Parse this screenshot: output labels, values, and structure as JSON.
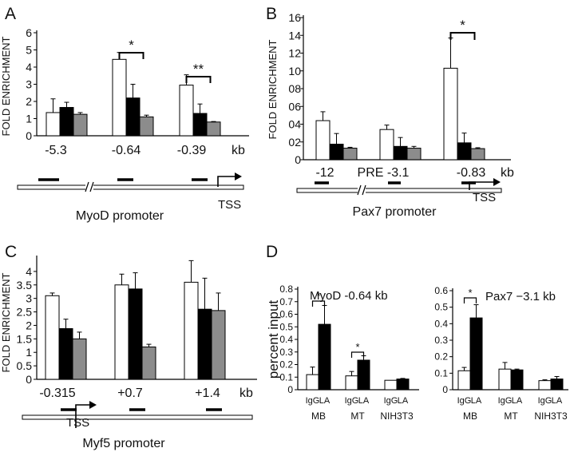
{
  "panel_letters": {
    "A": "A",
    "B": "B",
    "C": "C",
    "D": "D"
  },
  "colors": {
    "white": "#ffffff",
    "black": "#000000",
    "grey": "#8c8c8c",
    "line": "#000000"
  },
  "chart_data": [
    {
      "id": "A",
      "type": "bar",
      "ylabel": "FOLD ENRICHMENT",
      "ylim": [
        0,
        6
      ],
      "yticks": [
        "0",
        "1",
        "2",
        "3",
        "4",
        "5",
        "6"
      ],
      "categories": [
        "-5.3",
        "-0.64",
        "-0.39"
      ],
      "unit": "kb",
      "series": [
        {
          "name": "white",
          "values": [
            1.35,
            4.45,
            2.95
          ],
          "errors": [
            0.8,
            0.4,
            0.6
          ]
        },
        {
          "name": "black",
          "values": [
            1.65,
            2.2,
            1.3
          ],
          "errors": [
            0.3,
            0.8,
            0.55
          ]
        },
        {
          "name": "grey",
          "values": [
            1.25,
            1.1,
            0.8
          ],
          "errors": [
            0.1,
            0.1,
            0.03
          ]
        }
      ],
      "significance": [
        {
          "group": 1,
          "label": "*"
        },
        {
          "group": 2,
          "label": "**"
        }
      ],
      "promoter_label": "MyoD promoter",
      "tss": "TSS"
    },
    {
      "id": "B",
      "type": "bar",
      "ylabel": "FOLD ENRICHMENT",
      "ylim": [
        0,
        16
      ],
      "yticks": [
        "0",
        "02",
        "04",
        "06",
        "08",
        "10",
        "12",
        "14",
        "16"
      ],
      "categories": [
        "-12",
        "PRE -3.1",
        "-0.83"
      ],
      "unit": "kb",
      "series": [
        {
          "name": "white",
          "values": [
            4.4,
            3.4,
            10.3
          ],
          "errors": [
            1.0,
            0.5,
            3.4
          ]
        },
        {
          "name": "black",
          "values": [
            1.75,
            1.5,
            1.9
          ],
          "errors": [
            1.2,
            1.0,
            1.1
          ]
        },
        {
          "name": "grey",
          "values": [
            1.3,
            1.3,
            1.25
          ],
          "errors": [
            0.1,
            0.2,
            0.1
          ]
        }
      ],
      "significance": [
        {
          "group": 2,
          "label": "*"
        }
      ],
      "promoter_label": "Pax7 promoter",
      "tss": "TSS"
    },
    {
      "id": "C",
      "type": "bar",
      "ylabel": "FOLD ENRICHMENT",
      "ylim": [
        0,
        4.5
      ],
      "yticks": [
        "0",
        "0.5",
        "1",
        "1.5",
        "2",
        "2.5",
        "3",
        "3.5",
        "4"
      ],
      "categories": [
        "-0.315",
        "+0.7",
        "+1.4"
      ],
      "unit": "kb",
      "series": [
        {
          "name": "white",
          "values": [
            3.1,
            3.5,
            3.6
          ],
          "errors": [
            0.1,
            0.4,
            0.8
          ]
        },
        {
          "name": "black",
          "values": [
            1.88,
            3.35,
            2.6
          ],
          "errors": [
            0.35,
            0.6,
            1.15
          ]
        },
        {
          "name": "grey",
          "values": [
            1.5,
            1.2,
            2.55
          ],
          "errors": [
            0.25,
            0.1,
            0.65
          ]
        }
      ],
      "significance": [],
      "promoter_label": "Myf5 promoter",
      "tss": "TSS"
    },
    {
      "id": "D1",
      "type": "bar",
      "ylabel": "percent input",
      "title": "MyoD -0.64 kb",
      "ylim": [
        0,
        0.8
      ],
      "yticks": [
        "0",
        "0.1",
        "0.2",
        "0.3",
        "0.4",
        "0.5",
        "0.6",
        "0.7",
        "0.8"
      ],
      "categories": [
        "MB",
        "MT",
        "NIH3T3"
      ],
      "bar_labels": [
        "IgG",
        "LA"
      ],
      "series": [
        {
          "name": "IgG",
          "values": [
            0.12,
            0.11,
            0.075
          ],
          "errors": [
            0.06,
            0.035,
            0.0
          ]
        },
        {
          "name": "LA",
          "values": [
            0.52,
            0.235,
            0.085
          ],
          "errors": [
            0.15,
            0.035,
            0.005
          ]
        }
      ],
      "significance": [
        {
          "group": 0,
          "label": "*"
        },
        {
          "group": 1,
          "label": "*"
        }
      ]
    },
    {
      "id": "D2",
      "type": "bar",
      "title": "Pax7 −3.1 kb",
      "ylim": [
        0,
        0.6
      ],
      "yticks": [
        "0",
        "0.1",
        "0.2",
        "0.3",
        "0.4",
        "0.5",
        "0.6"
      ],
      "categories": [
        "MB",
        "MT",
        "NIH3T3"
      ],
      "bar_labels": [
        "IgG",
        "LA"
      ],
      "series": [
        {
          "name": "IgG",
          "values": [
            0.115,
            0.125,
            0.055
          ],
          "errors": [
            0.02,
            0.04,
            0.005
          ]
        },
        {
          "name": "LA",
          "values": [
            0.435,
            0.12,
            0.065
          ],
          "errors": [
            0.08,
            0.005,
            0.015
          ]
        }
      ],
      "significance": [
        {
          "group": 0,
          "label": "*"
        }
      ]
    }
  ]
}
